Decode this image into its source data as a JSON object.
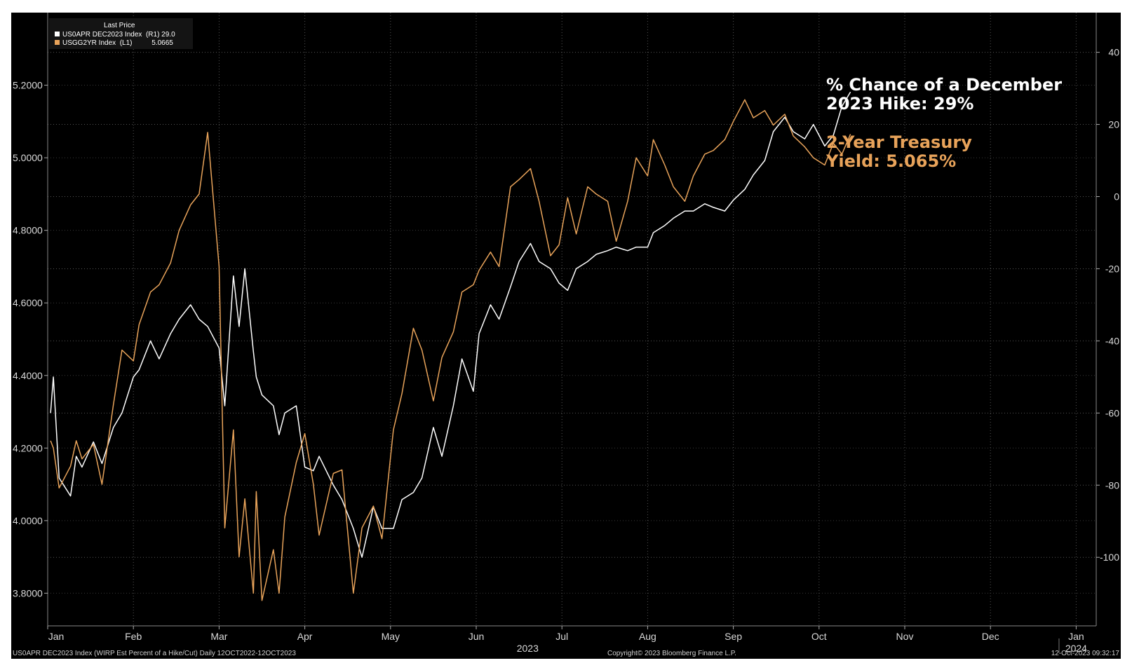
{
  "colors": {
    "background": "#000000",
    "white_series": "#ffffff",
    "orange_series": "#e8a35a",
    "grid": "#555555",
    "text": "#d9d9d9"
  },
  "legend": {
    "header": "Last Price",
    "items": [
      {
        "label": "US0APR DEC2023 Index  (R1) 29.0",
        "color": "#ffffff"
      },
      {
        "label": "USGG2YR Index  (L1)          5.0665",
        "color": "#e8a35a"
      }
    ]
  },
  "annotations": {
    "white_line1": "% Chance of a December",
    "white_line2": "2023 Hike: 29%",
    "orange_line1": "2-Year Treasury",
    "orange_line2": "Yield: 5.065%"
  },
  "footer": {
    "left": "US0APR DEC2023 Index (WIRP Est Percent of a Hike/Cut)  Daily 12OCT2022-12OCT2023",
    "center": "Copyright© 2023 Bloomberg Finance L.P.",
    "right": "12-Oct-2023 09:32:17"
  },
  "chart_data": {
    "type": "line",
    "x_axis": {
      "months": [
        "Jan",
        "Feb",
        "Mar",
        "Apr",
        "May",
        "Jun",
        "Jul",
        "Aug",
        "Sep",
        "Oct",
        "Nov",
        "Dec",
        "Jan"
      ],
      "year_labels": [
        "2023",
        "2024"
      ]
    },
    "left_axis": {
      "ticks": [
        "5.2000",
        "5.0000",
        "4.8000",
        "4.6000",
        "4.4000",
        "4.2000",
        "4.0000",
        "3.8000"
      ],
      "ylim": [
        3.71,
        5.4
      ]
    },
    "right_axis": {
      "ticks": [
        "40",
        "20",
        "0",
        "-20",
        "-40",
        "-60",
        "-80",
        "-100"
      ],
      "ylim": [
        -119,
        51
      ]
    },
    "series": [
      {
        "name": "US0APR DEC2023 Index",
        "axis": "right",
        "color": "#ffffff",
        "x": [
          "2023-01-02",
          "2023-01-03",
          "2023-01-05",
          "2023-01-09",
          "2023-01-11",
          "2023-01-13",
          "2023-01-17",
          "2023-01-20",
          "2023-01-24",
          "2023-01-27",
          "2023-01-31",
          "2023-02-03",
          "2023-02-07",
          "2023-02-10",
          "2023-02-14",
          "2023-02-17",
          "2023-02-21",
          "2023-02-24",
          "2023-02-27",
          "2023-03-01",
          "2023-03-03",
          "2023-03-06",
          "2023-03-08",
          "2023-03-10",
          "2023-03-13",
          "2023-03-14",
          "2023-03-16",
          "2023-03-20",
          "2023-03-22",
          "2023-03-24",
          "2023-03-28",
          "2023-03-31",
          "2023-04-04",
          "2023-04-06",
          "2023-04-11",
          "2023-04-14",
          "2023-04-18",
          "2023-04-21",
          "2023-04-25",
          "2023-04-28",
          "2023-05-02",
          "2023-05-05",
          "2023-05-09",
          "2023-05-12",
          "2023-05-16",
          "2023-05-19",
          "2023-05-23",
          "2023-05-26",
          "2023-05-30",
          "2023-06-02",
          "2023-06-06",
          "2023-06-09",
          "2023-06-13",
          "2023-06-16",
          "2023-06-20",
          "2023-06-23",
          "2023-06-27",
          "2023-06-30",
          "2023-07-03",
          "2023-07-06",
          "2023-07-10",
          "2023-07-13",
          "2023-07-17",
          "2023-07-20",
          "2023-07-24",
          "2023-07-27",
          "2023-07-31",
          "2023-08-03",
          "2023-08-07",
          "2023-08-10",
          "2023-08-14",
          "2023-08-17",
          "2023-08-21",
          "2023-08-24",
          "2023-08-28",
          "2023-08-31",
          "2023-09-05",
          "2023-09-08",
          "2023-09-12",
          "2023-09-15",
          "2023-09-19",
          "2023-09-22",
          "2023-09-26",
          "2023-09-29",
          "2023-10-03",
          "2023-10-06",
          "2023-10-09",
          "2023-10-12"
        ],
        "values": [
          -60,
          -50,
          -78,
          -83,
          -72,
          -75,
          -68,
          -74,
          -64,
          -60,
          -50,
          -48,
          -40,
          -45,
          -38,
          -34,
          -30,
          -34,
          -36,
          -42,
          -58,
          -22,
          -36,
          -20,
          -43,
          -50,
          -55,
          -58,
          -66,
          -60,
          -58,
          -75,
          -76,
          -72,
          -80,
          -84,
          -92,
          -100,
          -86,
          -92,
          -92,
          -84,
          -82,
          -78,
          -64,
          -72,
          -58,
          -45,
          -54,
          -38,
          -30,
          -34,
          -25,
          -18,
          -13,
          -18,
          -20,
          -24,
          -26,
          -20,
          -18,
          -16,
          -15,
          -14,
          -15,
          -14,
          -14,
          -10,
          -8,
          -6,
          -4,
          -4,
          -2,
          -3,
          -4,
          -1,
          2,
          6,
          10,
          18,
          22,
          18,
          16,
          20,
          14,
          17,
          25,
          29
        ]
      },
      {
        "name": "USGG2YR Index",
        "axis": "left",
        "color": "#e8a35a",
        "x": [
          "2023-01-02",
          "2023-01-03",
          "2023-01-05",
          "2023-01-09",
          "2023-01-11",
          "2023-01-13",
          "2023-01-17",
          "2023-01-20",
          "2023-01-24",
          "2023-01-27",
          "2023-01-31",
          "2023-02-03",
          "2023-02-07",
          "2023-02-10",
          "2023-02-14",
          "2023-02-17",
          "2023-02-21",
          "2023-02-24",
          "2023-02-27",
          "2023-03-01",
          "2023-03-03",
          "2023-03-06",
          "2023-03-08",
          "2023-03-10",
          "2023-03-13",
          "2023-03-14",
          "2023-03-16",
          "2023-03-20",
          "2023-03-22",
          "2023-03-24",
          "2023-03-28",
          "2023-03-31",
          "2023-04-04",
          "2023-04-06",
          "2023-04-11",
          "2023-04-14",
          "2023-04-18",
          "2023-04-21",
          "2023-04-25",
          "2023-04-28",
          "2023-05-02",
          "2023-05-05",
          "2023-05-09",
          "2023-05-12",
          "2023-05-16",
          "2023-05-19",
          "2023-05-23",
          "2023-05-26",
          "2023-05-30",
          "2023-06-02",
          "2023-06-06",
          "2023-06-09",
          "2023-06-13",
          "2023-06-16",
          "2023-06-20",
          "2023-06-23",
          "2023-06-27",
          "2023-06-30",
          "2023-07-03",
          "2023-07-06",
          "2023-07-10",
          "2023-07-13",
          "2023-07-17",
          "2023-07-20",
          "2023-07-24",
          "2023-07-27",
          "2023-07-31",
          "2023-08-03",
          "2023-08-07",
          "2023-08-10",
          "2023-08-14",
          "2023-08-17",
          "2023-08-21",
          "2023-08-24",
          "2023-08-28",
          "2023-08-31",
          "2023-09-05",
          "2023-09-08",
          "2023-09-12",
          "2023-09-15",
          "2023-09-19",
          "2023-09-22",
          "2023-09-26",
          "2023-09-29",
          "2023-10-03",
          "2023-10-06",
          "2023-10-09",
          "2023-10-12"
        ],
        "values": [
          4.22,
          4.2,
          4.09,
          4.15,
          4.22,
          4.17,
          4.21,
          4.1,
          4.32,
          4.47,
          4.44,
          4.54,
          4.63,
          4.65,
          4.71,
          4.8,
          4.87,
          4.9,
          5.07,
          4.7,
          3.98,
          4.25,
          3.9,
          4.06,
          3.8,
          4.08,
          3.78,
          3.92,
          3.8,
          4.01,
          4.16,
          4.24,
          4.1,
          3.96,
          4.13,
          4.14,
          3.8,
          3.98,
          4.04,
          3.95,
          4.25,
          4.35,
          4.53,
          4.47,
          4.33,
          4.45,
          4.52,
          4.63,
          4.65,
          4.69,
          4.74,
          4.7,
          4.92,
          4.94,
          4.97,
          4.88,
          4.73,
          4.76,
          4.89,
          4.79,
          4.92,
          4.9,
          4.88,
          4.77,
          4.88,
          5.0,
          4.95,
          5.05,
          4.98,
          4.92,
          4.88,
          4.95,
          5.01,
          5.02,
          5.05,
          5.1,
          5.16,
          5.11,
          5.13,
          5.09,
          5.12,
          5.06,
          5.03,
          5.0,
          4.98,
          5.04,
          5.01,
          5.065
        ]
      }
    ]
  }
}
